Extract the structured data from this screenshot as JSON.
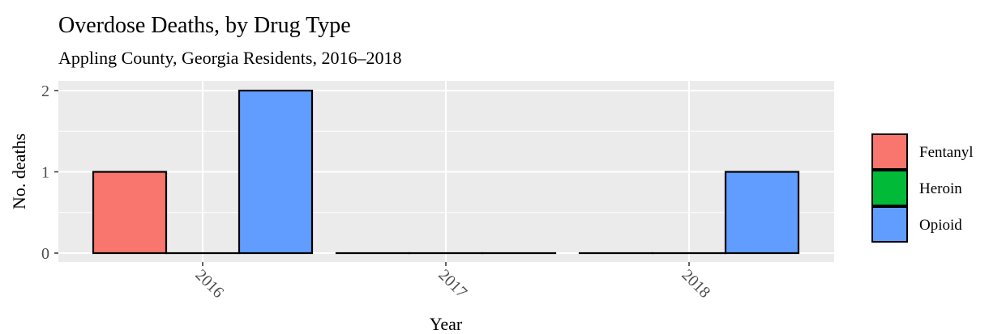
{
  "chart_data": {
    "type": "bar",
    "title": "Overdose Deaths, by Drug Type",
    "subtitle": "Appling County, Georgia Residents, 2016–2018",
    "xlabel": "Year",
    "ylabel": "No. deaths",
    "categories": [
      "2016",
      "2017",
      "2018"
    ],
    "series": [
      {
        "name": "Fentanyl",
        "color": "#F8766D",
        "values": [
          1,
          0,
          0
        ]
      },
      {
        "name": "Heroin",
        "color": "#00BA38",
        "values": [
          0,
          0,
          0
        ]
      },
      {
        "name": "Opioid",
        "color": "#619CFF",
        "values": [
          2,
          0,
          1
        ]
      }
    ],
    "ylim": [
      0,
      2
    ],
    "yticks": [
      0,
      1,
      2
    ],
    "grid": true,
    "legend": "right",
    "panel_background": "#EBEBEB"
  }
}
